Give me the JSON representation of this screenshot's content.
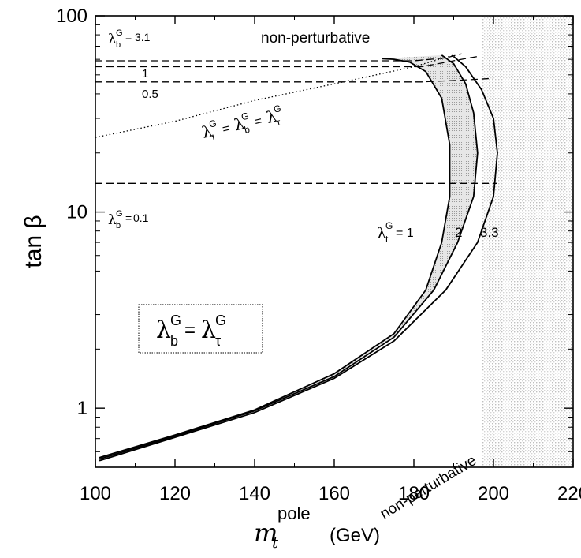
{
  "chart_data": {
    "type": "line",
    "xlabel_symbol": "m",
    "xlabel_sub": "t",
    "xlabel_sup": "pole",
    "xlabel_unit": "(GeV)",
    "ylabel": "tan β",
    "xlim": [
      100,
      220
    ],
    "ylim": [
      0.5,
      100
    ],
    "yscale": "log",
    "grid": false,
    "xticks": [
      "100",
      "120",
      "140",
      "160",
      "180",
      "200",
      "220"
    ],
    "yticks": [
      {
        "value": 1,
        "label": "1"
      },
      {
        "value": 10,
        "label": "10"
      },
      {
        "value": 100,
        "label": "100"
      }
    ],
    "region_labels": {
      "top": "non-perturbative",
      "right": "non-perturbative"
    },
    "boundary_key": {
      "prefix": "λ",
      "sup": "G",
      "sub": "t",
      "eq": "= 1"
    },
    "boundary_curves": [
      {
        "label": "",
        "x": [
          101,
          120,
          140,
          160,
          175,
          183,
          187,
          189,
          189,
          187,
          183,
          179,
          175,
          172
        ],
        "y": [
          0.56,
          0.73,
          0.98,
          1.5,
          2.4,
          4.0,
          7.0,
          12.0,
          22.0,
          38.0,
          52.0,
          58.0,
          60.0,
          60.5
        ]
      },
      {
        "label": "2",
        "x": [
          101,
          120,
          140,
          160,
          175,
          185,
          191,
          195,
          196,
          195,
          193,
          190,
          187
        ],
        "y": [
          0.55,
          0.72,
          0.97,
          1.45,
          2.3,
          4.0,
          7.0,
          12.0,
          20.0,
          32.0,
          45.0,
          57.0,
          63.0
        ]
      },
      {
        "label": "3.3",
        "x": [
          101,
          120,
          140,
          160,
          175,
          188,
          196,
          200,
          201,
          200,
          197,
          193,
          190
        ],
        "y": [
          0.54,
          0.71,
          0.95,
          1.42,
          2.2,
          4.0,
          7.0,
          12.0,
          20.0,
          30.0,
          42.0,
          55.0,
          62.0
        ]
      }
    ],
    "band_between": [
      "λt=1",
      "λt=2"
    ],
    "dashed_lines": [
      {
        "label": "3.1",
        "x": [
          100,
          180,
          188,
          192
        ],
        "y": [
          59,
          59,
          61,
          64
        ]
      },
      {
        "label": "1",
        "x": [
          100,
          182,
          192,
          196
        ],
        "y": [
          55,
          55,
          60,
          62
        ]
      },
      {
        "label": "0.5",
        "x": [
          100,
          182,
          192,
          200
        ],
        "y": [
          46,
          46,
          47,
          48
        ]
      },
      {
        "label": "0.1",
        "x": [
          100,
          201
        ],
        "y": [
          14,
          14
        ]
      }
    ],
    "dashed_key": {
      "prefix": "λ",
      "sup": "G",
      "sub": "b",
      "eq": "="
    },
    "dotted_line": {
      "x": [
        100,
        120,
        140,
        160,
        180,
        190
      ],
      "y": [
        24,
        29,
        37,
        45,
        55,
        63
      ]
    },
    "dotted_label": {
      "parts": [
        {
          "sym": "λ",
          "sup": "G",
          "sub": "t"
        },
        {
          "sym": "λ",
          "sup": "G",
          "sub": "b"
        },
        {
          "sym": "λ",
          "sup": "G",
          "sub": "τ"
        }
      ],
      "sep": "="
    },
    "legend_box": {
      "lhs": {
        "sym": "λ",
        "sup": "G",
        "sub": "b"
      },
      "rhs": {
        "sym": "λ",
        "sup": "G",
        "sub": "τ"
      },
      "sep": "="
    }
  }
}
